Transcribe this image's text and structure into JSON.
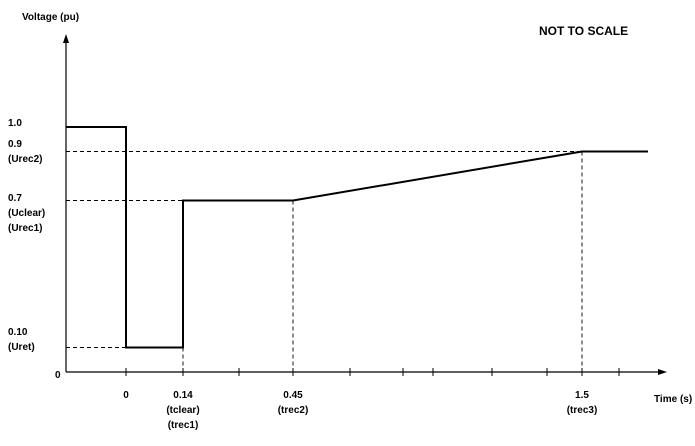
{
  "chart_data": {
    "type": "line",
    "title": "",
    "annotation": "NOT TO SCALE",
    "ylabel": "Voltage (pu)",
    "xlabel": "Time (s)",
    "origin_label": "0",
    "x_scale": "not to scale",
    "series": [
      {
        "points": [
          {
            "t": "start",
            "v": 1.0
          },
          {
            "t": "0",
            "v": 1.0
          },
          {
            "t": "0",
            "v": 0.1
          },
          {
            "t": "0.14",
            "v": 0.1
          },
          {
            "t": "0.14",
            "v": 0.7
          },
          {
            "t": "0.45",
            "v": 0.7
          },
          {
            "t": "1.5",
            "v": 0.9
          },
          {
            "t": "end",
            "v": 0.9
          }
        ]
      }
    ],
    "y_ticks": [
      {
        "value": 1.0,
        "lines": [
          "1.0"
        ]
      },
      {
        "value": 0.9,
        "lines": [
          "0.9",
          "(Urec2)"
        ]
      },
      {
        "value": 0.7,
        "lines": [
          "0.7",
          "(Uclear)",
          "(Urec1)"
        ]
      },
      {
        "value": 0.1,
        "lines": [
          "0.10",
          "(Uret)"
        ]
      }
    ],
    "x_ticks": [
      {
        "key": "0",
        "lines": [
          "0"
        ]
      },
      {
        "key": "0.14",
        "lines": [
          "0.14",
          "(tclear)",
          "(trec1)"
        ]
      },
      {
        "key": "0.45",
        "lines": [
          "0.45",
          "(trec2)"
        ]
      },
      {
        "key": "1.5",
        "lines": [
          "1.5",
          "(trec3)"
        ]
      }
    ],
    "guides": [
      {
        "from_x": "0.14",
        "to_y": 0.1
      },
      {
        "from_x": "0.45",
        "to_y": 0.7
      },
      {
        "from_x": "1.5",
        "to_y": 0.9
      }
    ],
    "grid": false,
    "legend": "none"
  }
}
